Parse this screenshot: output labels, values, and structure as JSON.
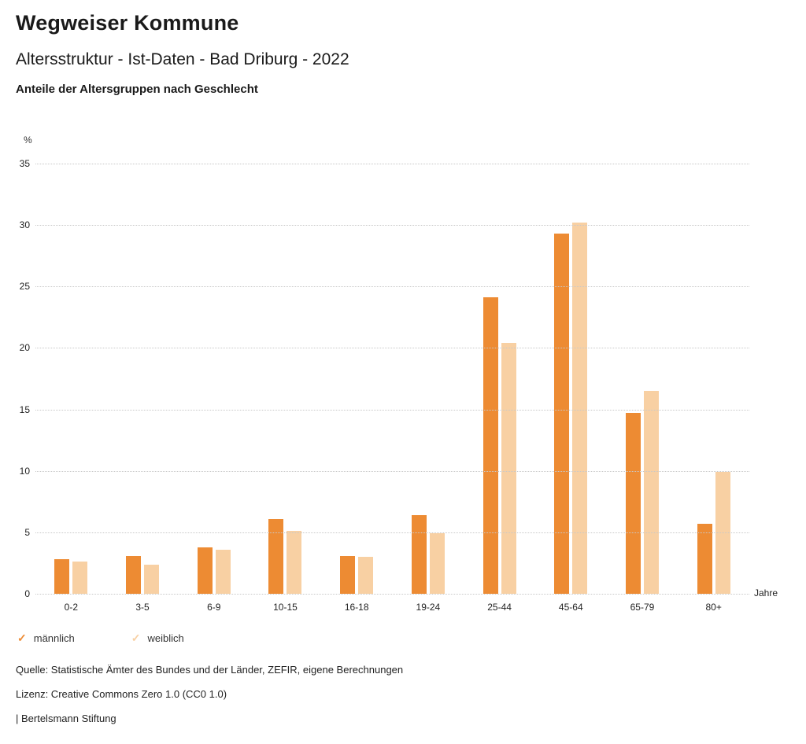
{
  "header": {
    "title": "Wegweiser Kommune",
    "subtitle": "Altersstruktur - Ist-Daten - Bad Driburg - 2022",
    "chart_heading": "Anteile der Altersgruppen nach Geschlecht"
  },
  "chart_data": {
    "type": "bar",
    "title": "Anteile der Altersgruppen nach Geschlecht",
    "categories": [
      "0-2",
      "3-5",
      "6-9",
      "10-15",
      "16-18",
      "19-24",
      "25-44",
      "45-64",
      "65-79",
      "80+"
    ],
    "series": [
      {
        "name": "männlich",
        "color": "#ED8B33",
        "values": [
          2.8,
          3.1,
          3.8,
          6.1,
          3.1,
          6.4,
          24.1,
          29.3,
          14.7,
          5.7
        ]
      },
      {
        "name": "weiblich",
        "color": "#F8D0A3",
        "values": [
          2.6,
          2.4,
          3.6,
          5.1,
          3.0,
          4.9,
          20.4,
          30.2,
          16.5,
          9.9
        ]
      }
    ],
    "ylabel": "%",
    "xlabel": "Jahre",
    "ylim": [
      0,
      35
    ],
    "yticks": [
      0,
      5,
      10,
      15,
      20,
      25,
      30,
      35
    ],
    "grid": "dotted horizontal",
    "legend_position": "bottom-left"
  },
  "axes": {
    "y_unit": "%",
    "x_unit": "Jahre"
  },
  "legend": {
    "items": [
      {
        "label": "männlich",
        "color": "#ED8B33"
      },
      {
        "label": "weiblich",
        "color": "#F8D0A3"
      }
    ]
  },
  "icons": {
    "check": "✓"
  },
  "footer": {
    "source": "Quelle: Statistische Ämter des Bundes und der Länder, ZEFIR, eigene Berechnungen",
    "license": "Lizenz: Creative Commons Zero 1.0 (CC0 1.0)",
    "attribution": "| Bertelsmann Stiftung"
  }
}
